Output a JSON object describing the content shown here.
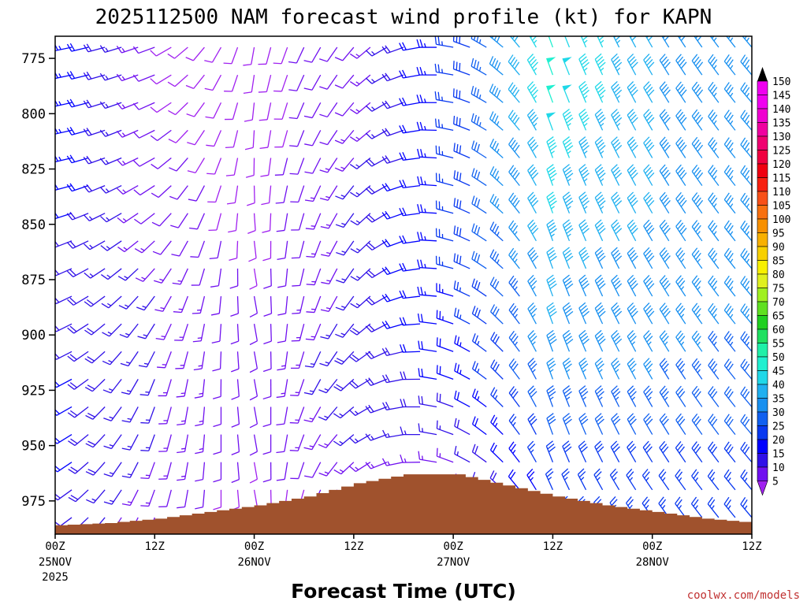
{
  "chart_data": {
    "type": "wind_barb_time_height",
    "title": "2025112500 NAM forecast wind profile (kt) for KAPN",
    "xlabel": "Forecast Time (UTC)",
    "ylabel": "",
    "credit": "coolwx.com/models",
    "y_axis": {
      "units": "hPa",
      "range": [
        990,
        765
      ],
      "ticks": [
        {
          "value": 775,
          "label": "775"
        },
        {
          "value": 800,
          "label": "800"
        },
        {
          "value": 825,
          "label": "825"
        },
        {
          "value": 850,
          "label": "850"
        },
        {
          "value": 875,
          "label": "875"
        },
        {
          "value": 900,
          "label": "900"
        },
        {
          "value": 925,
          "label": "925"
        },
        {
          "value": 950,
          "label": "950"
        },
        {
          "value": 975,
          "label": "975"
        }
      ]
    },
    "x_axis": {
      "units": "forecast hour",
      "range": [
        0,
        84
      ],
      "ticks": [
        {
          "hour": 0,
          "label": "00Z",
          "date": "25NOV",
          "year": "2025"
        },
        {
          "hour": 12,
          "label": "12Z",
          "date": "",
          "year": ""
        },
        {
          "hour": 24,
          "label": "00Z",
          "date": "26NOV",
          "year": ""
        },
        {
          "hour": 36,
          "label": "12Z",
          "date": "",
          "year": ""
        },
        {
          "hour": 48,
          "label": "00Z",
          "date": "27NOV",
          "year": ""
        },
        {
          "hour": 60,
          "label": "12Z",
          "date": "",
          "year": ""
        },
        {
          "hour": 72,
          "label": "00Z",
          "date": "28NOV",
          "year": ""
        },
        {
          "hour": 84,
          "label": "12Z",
          "date": "",
          "year": ""
        }
      ]
    },
    "terrain": {
      "color": "#a0522d",
      "hours": [
        0,
        6,
        12,
        18,
        24,
        30,
        36,
        42,
        48,
        54,
        60,
        66,
        72,
        78,
        84
      ],
      "pressure": [
        986,
        985,
        983,
        980,
        977,
        973,
        967,
        963,
        963,
        968,
        973,
        977,
        980,
        983,
        985
      ]
    },
    "wind_barbs": {
      "hours": [
        0,
        12,
        24,
        36,
        48,
        60,
        72,
        84
      ],
      "levels_hPa": [
        775,
        800,
        825,
        850,
        875,
        900,
        925,
        950,
        975
      ],
      "speed_kt_by_hour": [
        [
          25,
          25,
          25,
          22,
          20,
          20,
          22,
          22,
          20
        ],
        [
          10,
          10,
          12,
          12,
          15,
          15,
          15,
          15,
          12
        ],
        [
          8,
          8,
          8,
          8,
          10,
          10,
          10,
          10,
          8
        ],
        [
          12,
          12,
          15,
          15,
          15,
          18,
          18,
          15,
          10
        ],
        [
          25,
          25,
          25,
          25,
          25,
          22,
          20,
          15,
          10
        ],
        [
          50,
          50,
          45,
          45,
          40,
          40,
          35,
          30,
          25
        ],
        [
          40,
          40,
          40,
          40,
          38,
          38,
          35,
          30,
          25
        ],
        [
          35,
          35,
          35,
          35,
          35,
          35,
          30,
          30,
          25
        ]
      ],
      "direction_deg_by_hour": [
        [
          260,
          260,
          260,
          255,
          250,
          250,
          250,
          245,
          240
        ],
        [
          250,
          245,
          240,
          230,
          220,
          210,
          200,
          200,
          200
        ],
        [
          190,
          185,
          180,
          175,
          170,
          170,
          170,
          170,
          170
        ],
        [
          220,
          220,
          220,
          215,
          215,
          220,
          230,
          230,
          220
        ],
        [
          280,
          280,
          285,
          285,
          285,
          290,
          290,
          290,
          290
        ],
        [
          340,
          340,
          340,
          340,
          340,
          340,
          340,
          340,
          335
        ],
        [
          330,
          330,
          330,
          330,
          330,
          330,
          330,
          330,
          325
        ],
        [
          320,
          320,
          320,
          320,
          320,
          320,
          320,
          320,
          320
        ]
      ]
    },
    "colorbar": {
      "units": "kt",
      "labels": [
        "5",
        "10",
        "15",
        "20",
        "25",
        "30",
        "35",
        "40",
        "45",
        "50",
        "55",
        "60",
        "65",
        "70",
        "75",
        "80",
        "85",
        "90",
        "95",
        "100",
        "105",
        "110",
        "115",
        "120",
        "125",
        "130",
        "135",
        "140",
        "145",
        "150"
      ],
      "colors": [
        "#a020f0",
        "#7010f0",
        "#3010e8",
        "#0000ff",
        "#0838f0",
        "#1060f0",
        "#1890f0",
        "#20b0f0",
        "#20d8e8",
        "#20f0d0",
        "#20f0a8",
        "#20e060",
        "#20d020",
        "#60e020",
        "#a0f020",
        "#e0f020",
        "#f8f000",
        "#f8d000",
        "#f8b000",
        "#f89000",
        "#f87010",
        "#f85018",
        "#f82010",
        "#f00010",
        "#f00040",
        "#f00070",
        "#f000a0",
        "#f000d0",
        "#f000f0",
        "#f000f0"
      ]
    }
  }
}
